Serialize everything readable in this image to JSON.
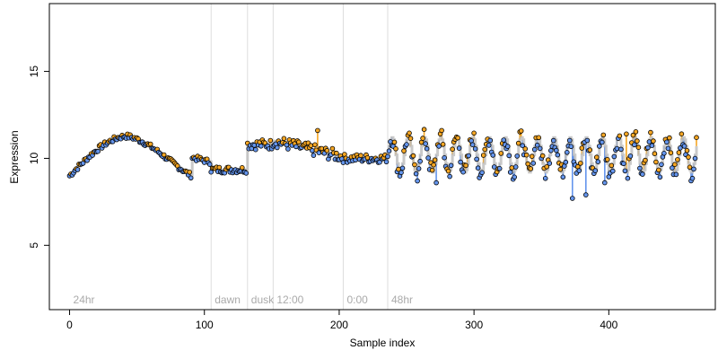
{
  "chart_data": {
    "type": "scatter",
    "title": "",
    "xlabel": "Sample index",
    "ylabel": "Expression",
    "xlim": [
      -15,
      479
    ],
    "ylim": [
      1.3,
      18.9
    ],
    "x_ticks": [
      0,
      100,
      200,
      300,
      400
    ],
    "y_ticks": [
      5,
      10,
      15
    ],
    "grid": false,
    "legend": "none",
    "colors": {
      "low": "#6495ed",
      "high": "#f5a623",
      "fit": "#bbbbbb",
      "region_line": "#dddddd",
      "region_text": "#aaaaaa",
      "point_stroke": "#000000"
    },
    "regions": [
      {
        "label": "24hr",
        "x": 0
      },
      {
        "label": "dawn",
        "x": 105
      },
      {
        "label": "dusk",
        "x": 132
      },
      {
        "label": "12:00",
        "x": 151
      },
      {
        "label": "0:00",
        "x": 203
      },
      {
        "label": "48hr",
        "x": 236
      }
    ],
    "segments": [
      {
        "start": 0,
        "end": 104,
        "shape": "hump",
        "base": 9.0,
        "amp": 2.3,
        "end_level": 9.8,
        "noise": 0.15
      },
      {
        "start": 105,
        "end": 131,
        "shape": "flat",
        "base": 9.35,
        "noise": 0.2
      },
      {
        "start": 132,
        "end": 150,
        "shape": "flat",
        "base": 10.8,
        "noise": 0.3
      },
      {
        "start": 151,
        "end": 202,
        "shape": "slope",
        "base": 11.0,
        "end_level": 10.1,
        "noise": 0.35
      },
      {
        "start": 203,
        "end": 235,
        "shape": "flat",
        "base": 10.0,
        "noise": 0.25
      },
      {
        "start": 236,
        "end": 465,
        "shape": "oscillate",
        "base": 10.2,
        "amp": 1.0,
        "period": 12,
        "noise": 0.5
      }
    ],
    "outliers": [
      {
        "x": 258,
        "y": 8.7
      },
      {
        "x": 272,
        "y": 8.6
      },
      {
        "x": 373,
        "y": 7.7
      },
      {
        "x": 383,
        "y": 7.9
      },
      {
        "x": 397,
        "y": 8.6
      },
      {
        "x": 184,
        "y": 11.6
      },
      {
        "x": 276,
        "y": 11.6
      },
      {
        "x": 413,
        "y": 11.4
      }
    ]
  }
}
